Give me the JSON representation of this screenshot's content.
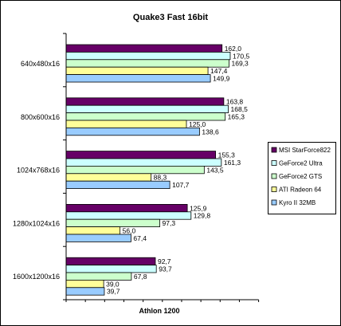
{
  "chart_data": {
    "type": "bar",
    "orientation": "horizontal",
    "title": "Quake3 Fast 16bit",
    "xlabel": "Athlon 1200",
    "ylabel": "",
    "categories": [
      "640x480x16",
      "800x600x16",
      "1024x768x16",
      "1280x1024x16",
      "1600x1200x16"
    ],
    "series": [
      {
        "name": "MSI StarForce822",
        "color": "#660066",
        "values": [
          162.0,
          163.8,
          155.3,
          125.9,
          92.7
        ],
        "labels": [
          "162,0",
          "163,8",
          "155,3",
          "125,9",
          "92,7"
        ]
      },
      {
        "name": "GeForce2 Ultra",
        "color": "#ccffff",
        "values": [
          170.5,
          168.5,
          161.3,
          129.8,
          93.7
        ],
        "labels": [
          "170,5",
          "168,5",
          "161,3",
          "129,8",
          "93,7"
        ]
      },
      {
        "name": "GeForce2 GTS",
        "color": "#ccffcc",
        "values": [
          169.3,
          165.3,
          143.5,
          97.3,
          67.8
        ],
        "labels": [
          "169,3",
          "165,3",
          "143,5",
          "97,3",
          "67,8"
        ]
      },
      {
        "name": "ATI Radeon 64",
        "color": "#ffff99",
        "values": [
          147.4,
          125.0,
          88.3,
          56.0,
          39.0
        ],
        "labels": [
          "147,4",
          "125,0",
          "88,3",
          "56,0",
          "39,0"
        ]
      },
      {
        "name": "Kyro II 32MB",
        "color": "#99ccff",
        "values": [
          149.9,
          138.6,
          107.7,
          67.4,
          39.7
        ],
        "labels": [
          "149,9",
          "138,6",
          "107,7",
          "67,4",
          "39,7"
        ]
      }
    ],
    "xlim": [
      0,
      200
    ],
    "grid": false,
    "axis_ticks_labeled": false,
    "legend_position": "right",
    "background_color": "#ffffff",
    "border_color": "#000000"
  }
}
